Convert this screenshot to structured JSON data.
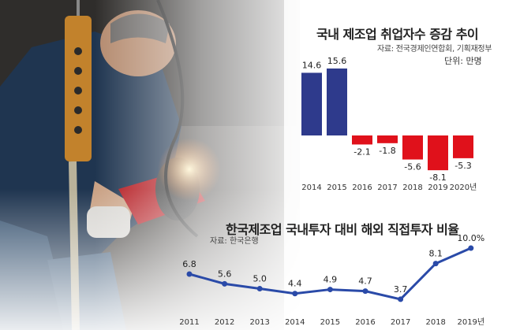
{
  "chart_data": [
    {
      "type": "bar",
      "title": "국내 제조업 취업자수 증감 추이",
      "source": "자료: 전국경제인연합회, 기획재정부",
      "unit": "단위: 만명",
      "categories": [
        "2014",
        "2015",
        "2016",
        "2017",
        "2018",
        "2019",
        "2020년"
      ],
      "values": [
        14.6,
        15.6,
        -2.1,
        -1.8,
        -5.6,
        -8.1,
        -5.3
      ],
      "value_labels": [
        "14.6",
        "15.6",
        "-2.1",
        "-1.8",
        "-5.6",
        "-8.1",
        "-5.3"
      ],
      "colors": {
        "positive": "#2e3a8c",
        "negative": "#e0111b"
      }
    },
    {
      "type": "line",
      "title": "한국제조업 국내투자 대비 해외 직접투자 비율",
      "source": "자료: 한국은행",
      "categories": [
        "2011",
        "2012",
        "2013",
        "2014",
        "2015",
        "2016",
        "2017",
        "2018",
        "2019년"
      ],
      "values": [
        6.8,
        5.6,
        5.0,
        4.4,
        4.9,
        4.7,
        3.7,
        8.1,
        10.0
      ],
      "value_labels": [
        "6.8",
        "5.6",
        "5.0",
        "4.4",
        "4.9",
        "4.7",
        "3.7",
        "8.1",
        "10.0%"
      ],
      "colors": {
        "line": "#2a4aa8"
      }
    }
  ]
}
